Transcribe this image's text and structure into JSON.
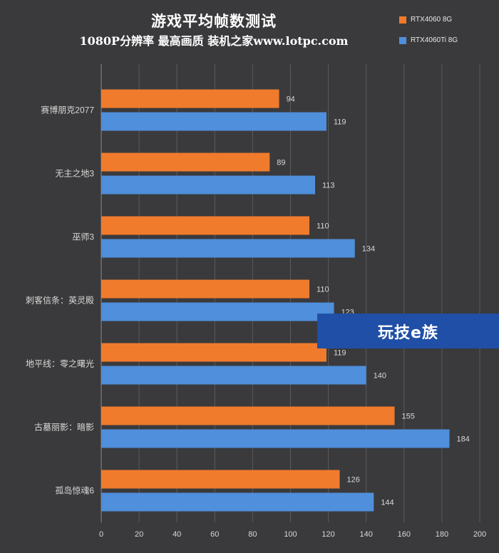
{
  "chart_data": {
    "type": "bar",
    "orientation": "horizontal",
    "title": "游戏平均帧数测试",
    "subtitle": "1080P分辨率 最高画质 装机之家www.lotpc.com",
    "categories": [
      "赛博朋克2077",
      "无主之地3",
      "巫师3",
      "刺客信条：英灵殿",
      "地平线：零之曙光",
      "古墓丽影：暗影",
      "孤岛惊魂6"
    ],
    "series": [
      {
        "name": "RTX4060 8G",
        "color": "#f07b2c",
        "values": [
          94,
          89,
          110,
          110,
          119,
          155,
          126
        ]
      },
      {
        "name": "RTX4060Ti 8G",
        "color": "#4f8fdb",
        "values": [
          119,
          113,
          134,
          123,
          140,
          184,
          144
        ]
      }
    ],
    "xlim": [
      0,
      200
    ],
    "xticks": [
      0,
      20,
      40,
      60,
      80,
      100,
      120,
      140,
      160,
      180,
      200
    ],
    "grid": true,
    "legend_position": "top-right"
  },
  "watermark": {
    "text": "玩技e族"
  },
  "colors": {
    "background": "#3a3a3c",
    "grid": "#5a5a5c",
    "axis_text": "#d8d8d8"
  }
}
